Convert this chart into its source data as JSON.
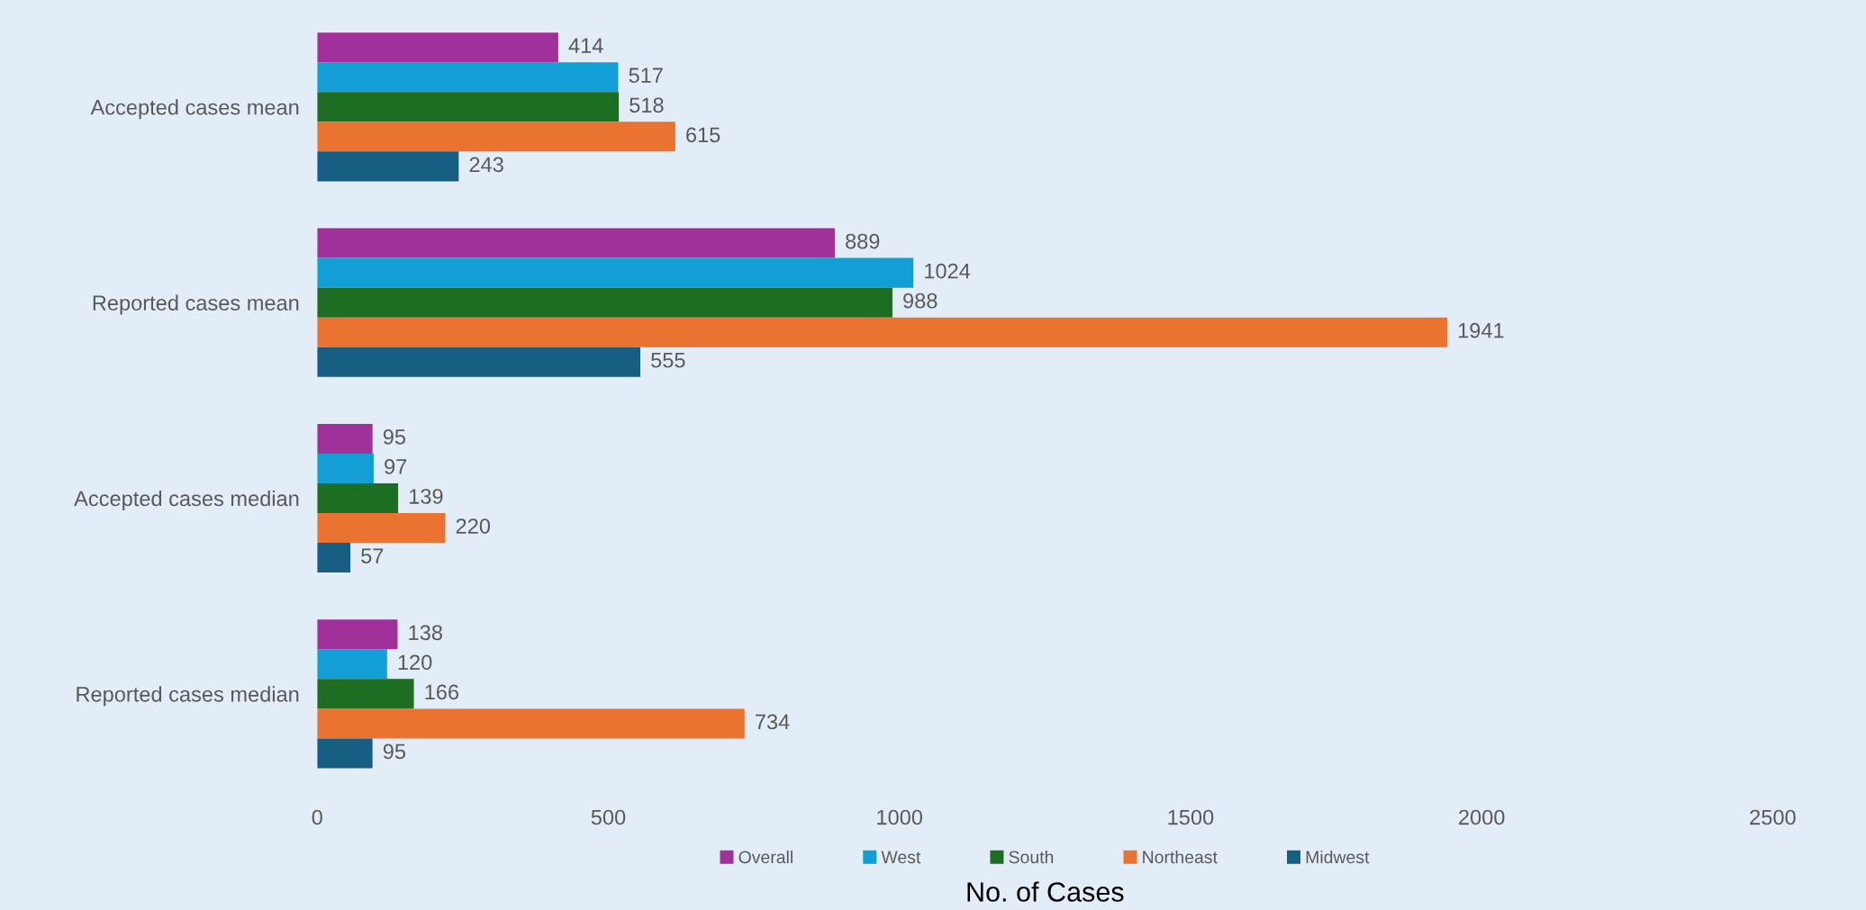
{
  "chart_data": {
    "type": "bar",
    "orientation": "horizontal",
    "xlabel": "No. of Cases",
    "categories": [
      "Accepted cases mean",
      "Reported cases mean",
      "Accepted cases median",
      "Reported cases median"
    ],
    "series": [
      {
        "name": "Overall",
        "color": "#a0309a",
        "values": [
          414,
          889,
          95,
          138
        ]
      },
      {
        "name": "West",
        "color": "#119fd6",
        "values": [
          517,
          1024,
          97,
          120
        ]
      },
      {
        "name": "South",
        "color": "#1d6d23",
        "values": [
          518,
          988,
          139,
          166
        ]
      },
      {
        "name": "Northeast",
        "color": "#ea7331",
        "values": [
          615,
          1941,
          220,
          734
        ]
      },
      {
        "name": "Midwest",
        "color": "#175e83",
        "values": [
          243,
          555,
          57,
          95
        ]
      }
    ],
    "xlim": [
      0,
      2500
    ],
    "xticks": [
      0,
      500,
      1000,
      1500,
      2000,
      2500
    ],
    "data_labels": true,
    "legend": "bottom",
    "grid": false
  }
}
